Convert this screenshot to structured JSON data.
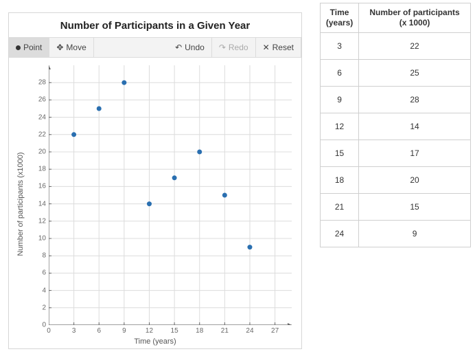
{
  "chart": {
    "title": "Number of Participants in a Given Year",
    "type": "scatter",
    "xlabel": "Time (years)",
    "ylabel": "Number of participants (x1000)",
    "xlim": [
      0,
      29
    ],
    "ylim": [
      0,
      30
    ],
    "xtick_step": 3,
    "ytick_step": 2,
    "xticks": [
      0,
      3,
      6,
      9,
      12,
      15,
      18,
      21,
      24,
      27
    ],
    "yticks": [
      0,
      2,
      4,
      6,
      8,
      10,
      12,
      14,
      16,
      18,
      20,
      22,
      24,
      26,
      28
    ],
    "point_color": "#2a6fb0",
    "point_radius": 3.5,
    "grid_color": "#dcdcdc",
    "axis_color": "#666666",
    "background_color": "#ffffff",
    "title_fontsize": 15,
    "label_fontsize": 11,
    "tick_fontsize": 10,
    "points": [
      {
        "x": 3,
        "y": 22
      },
      {
        "x": 6,
        "y": 25
      },
      {
        "x": 9,
        "y": 28
      },
      {
        "x": 12,
        "y": 14
      },
      {
        "x": 15,
        "y": 17
      },
      {
        "x": 18,
        "y": 20
      },
      {
        "x": 21,
        "y": 15
      },
      {
        "x": 24,
        "y": 9
      }
    ]
  },
  "toolbar": {
    "point": "Point",
    "move": "Move",
    "undo": "Undo",
    "redo": "Redo",
    "reset": "Reset"
  },
  "table": {
    "col1_header_line1": "Time",
    "col1_header_line2": "(years)",
    "col2_header_line1": "Number of participants",
    "col2_header_line2": "(x 1000)",
    "rows": [
      {
        "time": 3,
        "n": 22
      },
      {
        "time": 6,
        "n": 25
      },
      {
        "time": 9,
        "n": 28
      },
      {
        "time": 12,
        "n": 14
      },
      {
        "time": 15,
        "n": 17
      },
      {
        "time": 18,
        "n": 20
      },
      {
        "time": 21,
        "n": 15
      },
      {
        "time": 24,
        "n": 9
      }
    ]
  }
}
